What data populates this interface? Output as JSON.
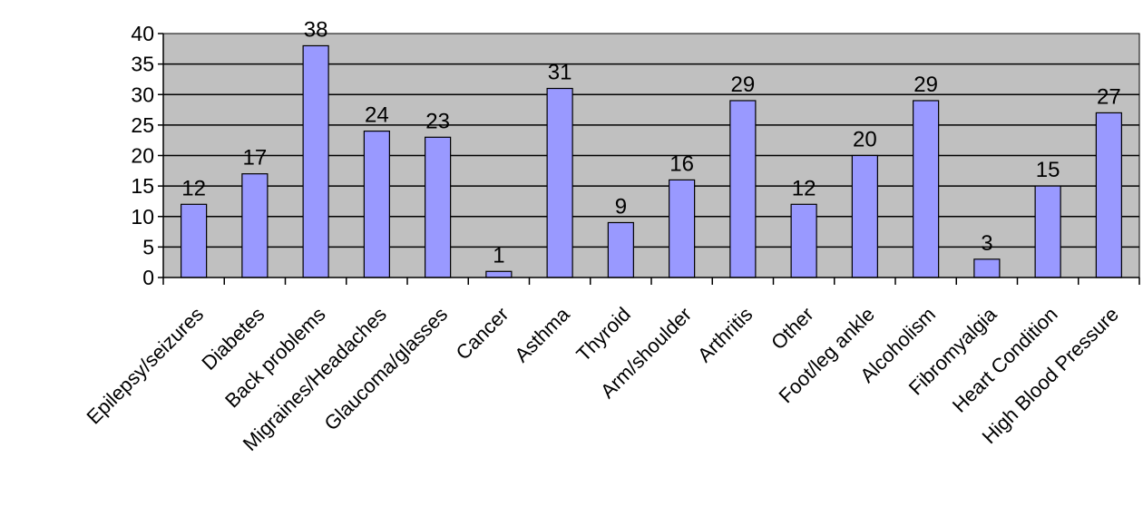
{
  "colors": {
    "plot_background": "#c0c0c0",
    "bar_fill": "#9999ff",
    "bar_stroke": "#000000",
    "gridline": "#000000",
    "axis": "#000000",
    "page_background": "#ffffff"
  },
  "chart_data": {
    "type": "bar",
    "title": "",
    "xlabel": "",
    "ylabel": "",
    "ylim": [
      0,
      40
    ],
    "yticks": [
      0,
      5,
      10,
      15,
      20,
      25,
      30,
      35,
      40
    ],
    "grid": true,
    "legend": "none",
    "data_labels": true,
    "categories": [
      "Epilepsy/seizures",
      "Diabetes",
      "Back problems",
      "Migraines/Headaches",
      "Glaucoma/glasses",
      "Cancer",
      "Asthma",
      "Thyroid",
      "Arm/shoulder",
      "Arthritis",
      "Other",
      "Foot/leg ankle",
      "Alcoholism",
      "Fibromyalgia",
      "Heart Condition",
      "High Blood Pressure"
    ],
    "values": [
      12,
      17,
      38,
      24,
      23,
      1,
      31,
      9,
      16,
      29,
      12,
      20,
      29,
      3,
      15,
      27
    ]
  }
}
